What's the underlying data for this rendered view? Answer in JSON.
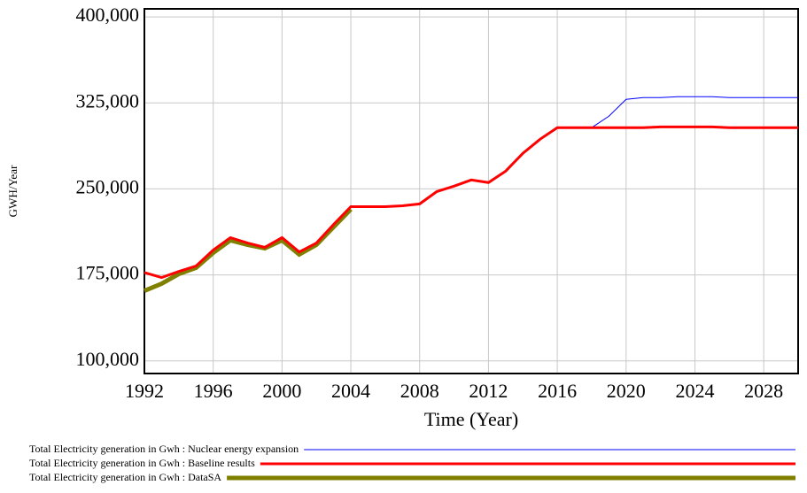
{
  "chart_data": {
    "type": "line",
    "xlabel": "Time (Year)",
    "ylabel": "GWH/Year",
    "x": [
      1992,
      1993,
      1994,
      1995,
      1996,
      1997,
      1998,
      1999,
      2000,
      2001,
      2002,
      2003,
      2004,
      2005,
      2006,
      2007,
      2008,
      2009,
      2010,
      2011,
      2012,
      2013,
      2014,
      2015,
      2016,
      2017,
      2018,
      2019,
      2020,
      2021,
      2022,
      2023,
      2024,
      2025,
      2026,
      2027,
      2028,
      2029,
      2030
    ],
    "series": [
      {
        "name": "Total Electricity generation in Gwh : Nuclear energy expansion",
        "color": "#0000ff",
        "width": 1,
        "values": [
          177000,
          172700,
          178000,
          182700,
          196600,
          207500,
          202800,
          199000,
          207500,
          195000,
          202800,
          219000,
          234500,
          234500,
          234500,
          235300,
          236900,
          247700,
          252400,
          257800,
          255500,
          265500,
          281000,
          293300,
          303400,
          303400,
          303400,
          313400,
          328100,
          329600,
          329600,
          330400,
          330400,
          330400,
          329600,
          329600,
          329600,
          329600,
          329600
        ]
      },
      {
        "name": "Total Electricity generation in Gwh : Baseline results",
        "color": "#ff0000",
        "width": 3,
        "values": [
          177000,
          172700,
          178000,
          182700,
          196600,
          207500,
          202800,
          199000,
          207500,
          195000,
          202800,
          219000,
          234500,
          234500,
          234500,
          235300,
          236900,
          247700,
          252400,
          257800,
          255500,
          265500,
          281000,
          293300,
          303400,
          303400,
          303400,
          303400,
          303400,
          303400,
          304100,
          304100,
          304100,
          304100,
          303400,
          303400,
          303400,
          303400,
          303400
        ]
      },
      {
        "name": "Total Electricity generation in Gwh : DataSA",
        "color": "#808000",
        "width": 5,
        "values": [
          161100,
          167300,
          175800,
          181200,
          194300,
          205200,
          201300,
          198200,
          205200,
          192800,
          201300,
          216800,
          232300,
          null,
          null,
          null,
          null,
          null,
          null,
          null,
          null,
          null,
          null,
          null,
          null,
          null,
          null,
          null,
          null,
          null,
          null,
          null,
          null,
          null,
          null,
          null,
          null,
          null,
          null
        ]
      }
    ],
    "xlim": [
      1992,
      2030
    ],
    "xticks": [
      1992,
      1996,
      2000,
      2004,
      2008,
      2012,
      2016,
      2020,
      2024,
      2028
    ],
    "ylim": [
      89000,
      407000
    ],
    "yticks": [
      {
        "value": 100000,
        "label": "100,000"
      },
      {
        "value": 175000,
        "label": "175,000"
      },
      {
        "value": 250000,
        "label": "250,000"
      },
      {
        "value": 325000,
        "label": "325,000"
      },
      {
        "value": 400000,
        "label": "400,000"
      }
    ],
    "grid": true
  }
}
